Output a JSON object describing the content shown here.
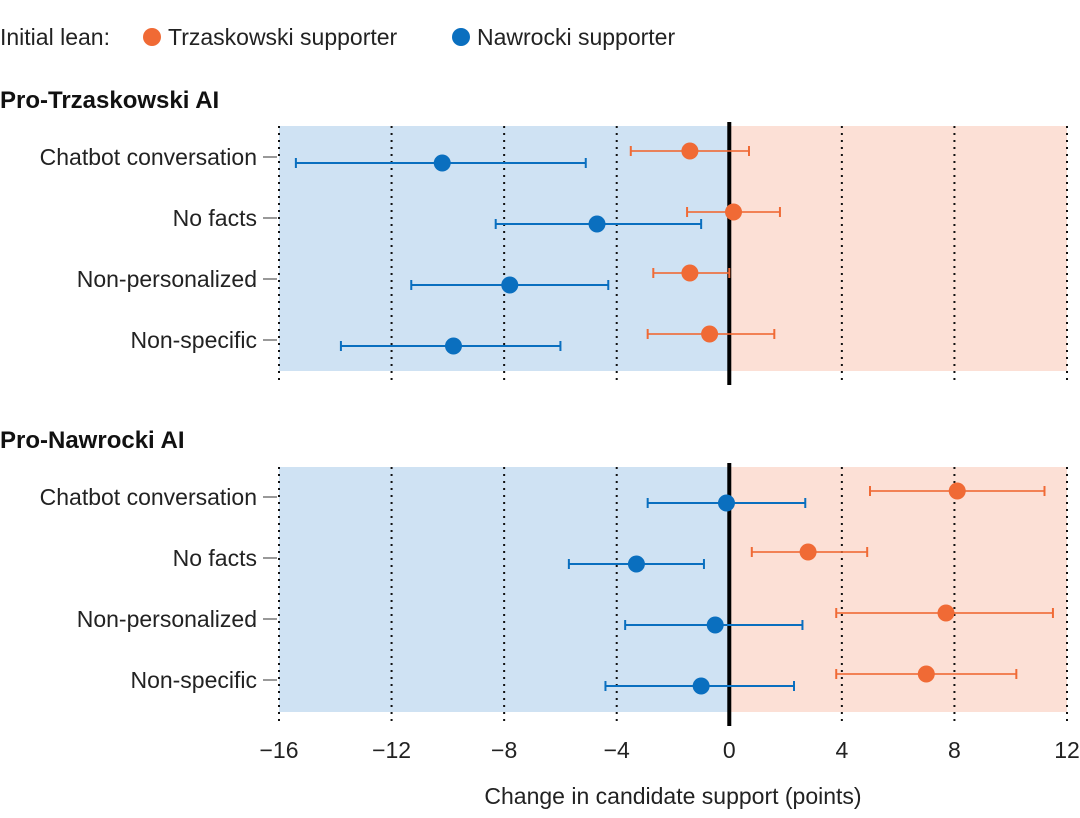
{
  "chart_data": {
    "type": "scatter",
    "subtype": "dot-and-whisker",
    "legend": {
      "title": "Initial lean:",
      "entries": [
        {
          "key": "trzaskowski",
          "label": "Trzaskowski supporter",
          "color": "#f06a35"
        },
        {
          "key": "nawrocki",
          "label": "Nawrocki supporter",
          "color": "#0a6fbf"
        }
      ],
      "placement": "top-left"
    },
    "xlabel": "Change in candidate support (points)",
    "xlim": [
      -16,
      12
    ],
    "xticks": [
      -16,
      -12,
      -8,
      -4,
      0,
      4,
      8,
      12
    ],
    "xtick_labels": [
      "−16",
      "−12",
      "−8",
      "−4",
      "0",
      "4",
      "8",
      "12"
    ],
    "grid": "vertical dotted",
    "background": {
      "negative_color": "#cfe2f3",
      "positive_color": "#fce0d6"
    },
    "categories": [
      "Chatbot conversation",
      "No facts",
      "Non-personalized",
      "Non-specific"
    ],
    "panels": [
      {
        "title": "Pro-Trzaskowski AI",
        "series": [
          {
            "key": "trzaskowski",
            "name": "Trzaskowski supporter",
            "values": [
              -1.4,
              0.15,
              -1.4,
              -0.7
            ],
            "ci_low": [
              -3.5,
              -1.5,
              -2.7,
              -2.9
            ],
            "ci_high": [
              0.7,
              1.8,
              0.0,
              1.6
            ]
          },
          {
            "key": "nawrocki",
            "name": "Nawrocki supporter",
            "values": [
              -10.2,
              -4.7,
              -7.8,
              -9.8
            ],
            "ci_low": [
              -15.4,
              -8.3,
              -11.3,
              -13.8
            ],
            "ci_high": [
              -5.1,
              -1.0,
              -4.3,
              -6.0
            ]
          }
        ]
      },
      {
        "title": "Pro-Nawrocki AI",
        "series": [
          {
            "key": "trzaskowski",
            "name": "Trzaskowski supporter",
            "values": [
              8.1,
              2.8,
              7.7,
              7.0
            ],
            "ci_low": [
              5.0,
              0.8,
              3.8,
              3.8
            ],
            "ci_high": [
              11.2,
              4.9,
              11.5,
              10.2
            ]
          },
          {
            "key": "nawrocki",
            "name": "Nawrocki supporter",
            "values": [
              -0.1,
              -3.3,
              -0.5,
              -1.0
            ],
            "ci_low": [
              -2.9,
              -5.7,
              -3.7,
              -4.4
            ],
            "ci_high": [
              2.7,
              -0.9,
              2.6,
              2.3
            ]
          }
        ]
      }
    ]
  }
}
